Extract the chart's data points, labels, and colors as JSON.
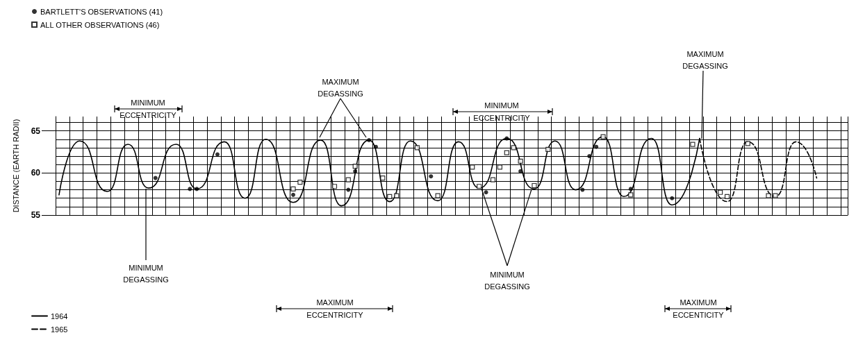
{
  "chart_data": {
    "type": "line",
    "ylabel": "DISTANCE (EARTH RADII)",
    "categories": [
      null,
      null,
      null,
      null,
      null,
      null,
      null,
      null,
      null,
      null,
      null,
      null,
      null,
      null,
      null,
      null,
      null,
      null,
      null,
      null,
      null,
      null,
      null,
      null,
      null,
      null,
      null,
      null,
      null,
      null,
      null,
      null,
      null,
      null,
      null,
      null,
      null,
      null,
      null,
      null,
      null,
      null,
      null,
      null,
      null,
      null,
      null,
      null,
      null,
      null,
      null,
      null,
      null,
      null,
      null,
      null,
      null,
      null,
      null,
      null,
      null,
      null,
      null,
      null,
      null,
      null,
      null,
      null,
      null,
      null,
      null,
      null,
      null,
      null,
      null,
      null,
      null,
      null,
      null,
      null,
      null,
      null,
      null,
      null,
      null,
      null,
      null,
      null,
      null,
      null,
      null,
      null,
      null,
      null,
      null,
      null,
      null,
      null,
      null,
      null,
      null,
      null,
      null,
      null,
      null,
      null,
      null,
      null,
      null,
      null,
      null,
      null,
      null,
      null,
      null
    ],
    "series": [
      {
        "name": "BARTLETT'S OBSERVATIONS (41)",
        "type": "scatter",
        "marker": "circle",
        "color": "#000000",
        "values": [
          null,
          null,
          null,
          null,
          null,
          null,
          null,
          null,
          null,
          null,
          null,
          null,
          null,
          null,
          59.4,
          null,
          null,
          null,
          null,
          58.1,
          58.1,
          null,
          null,
          62.2,
          null,
          null,
          null,
          null,
          null,
          null,
          null,
          null,
          null,
          null,
          57.4,
          null,
          null,
          null,
          null,
          null,
          null,
          null,
          58.0,
          60.2,
          null,
          63.9,
          63.1,
          null,
          null,
          null,
          null,
          null,
          null,
          null,
          59.6,
          null,
          null,
          null,
          null,
          null,
          null,
          null,
          57.7,
          null,
          null,
          64.1,
          null,
          60.2,
          null,
          null,
          null,
          null,
          null,
          null,
          null,
          null,
          58.0,
          62.0,
          63.1,
          null,
          null,
          null,
          null,
          58.1,
          null,
          null,
          null,
          null,
          null,
          57.0,
          null,
          null,
          null,
          null,
          null,
          null,
          null,
          null,
          null,
          null,
          null,
          null,
          null,
          null,
          null,
          null,
          null,
          null,
          null,
          null,
          null,
          null,
          null,
          null,
          null
        ]
      },
      {
        "name": "ALL OTHER OBSERVATIONS (46)",
        "type": "scatter",
        "marker": "square",
        "color": "#000000",
        "values": [
          null,
          null,
          null,
          null,
          null,
          null,
          null,
          null,
          null,
          null,
          null,
          null,
          null,
          null,
          null,
          null,
          null,
          null,
          null,
          null,
          null,
          null,
          null,
          null,
          null,
          null,
          null,
          null,
          null,
          null,
          null,
          null,
          null,
          null,
          58.1,
          58.9,
          null,
          null,
          null,
          null,
          58.4,
          null,
          59.2,
          60.8,
          null,
          null,
          null,
          59.4,
          57.2,
          57.3,
          null,
          null,
          63.0,
          null,
          null,
          57.3,
          null,
          null,
          null,
          null,
          60.7,
          58.4,
          null,
          59.2,
          60.7,
          62.4,
          63.0,
          61.4,
          null,
          58.5,
          null,
          62.8,
          null,
          null,
          null,
          null,
          null,
          null,
          null,
          64.3,
          null,
          null,
          null,
          57.4,
          null,
          null,
          null,
          null,
          null,
          null,
          null,
          null,
          63.4,
          null,
          null,
          null,
          57.7,
          57.2,
          null,
          null,
          63.5,
          null,
          null,
          57.3,
          57.3,
          null,
          null,
          null,
          null,
          null,
          null,
          null,
          null,
          null,
          null
        ]
      },
      {
        "name": "1964",
        "line_style": "solid",
        "color": "#000000",
        "values": [
          57.4,
          null,
          null,
          63.8,
          null,
          null,
          null,
          57.8,
          null,
          null,
          63.4,
          null,
          null,
          58.2,
          null,
          null,
          null,
          63.4,
          null,
          null,
          58.1,
          null,
          null,
          null,
          63.7,
          null,
          null,
          57.0,
          null,
          null,
          64.0,
          null,
          null,
          null,
          56.5,
          null,
          null,
          null,
          63.9,
          null,
          null,
          56.1,
          null,
          null,
          null,
          63.9,
          null,
          null,
          56.6,
          null,
          null,
          63.8,
          null,
          null,
          null,
          56.7,
          null,
          null,
          63.7,
          null,
          null,
          58.2,
          null,
          null,
          null,
          64.1,
          null,
          null,
          null,
          58.1,
          null,
          null,
          63.8,
          null,
          null,
          58.0,
          null,
          null,
          null,
          64.3,
          null,
          null,
          57.2,
          null,
          null,
          null,
          64.1,
          null,
          null,
          56.2,
          null,
          null,
          null,
          64.1,
          null,
          null,
          null,
          null,
          null,
          null,
          null,
          null,
          null,
          null,
          null,
          null,
          null,
          null,
          null,
          null,
          null,
          null,
          null,
          null,
          null
        ]
      },
      {
        "name": "1965",
        "line_style": "dashed",
        "color": "#000000",
        "values": [
          null,
          null,
          null,
          null,
          null,
          null,
          null,
          null,
          null,
          null,
          null,
          null,
          null,
          null,
          null,
          null,
          null,
          null,
          null,
          null,
          null,
          null,
          null,
          null,
          null,
          null,
          null,
          null,
          null,
          null,
          null,
          null,
          null,
          null,
          null,
          null,
          null,
          null,
          null,
          null,
          null,
          null,
          null,
          null,
          null,
          null,
          null,
          null,
          null,
          null,
          null,
          null,
          null,
          null,
          null,
          null,
          null,
          null,
          null,
          null,
          null,
          null,
          null,
          null,
          null,
          null,
          null,
          null,
          null,
          null,
          null,
          null,
          null,
          null,
          null,
          null,
          null,
          null,
          null,
          null,
          null,
          null,
          null,
          null,
          null,
          null,
          null,
          null,
          null,
          null,
          null,
          null,
          null,
          64.1,
          null,
          null,
          null,
          56.6,
          null,
          null,
          63.7,
          null,
          null,
          null,
          57.2,
          null,
          null,
          63.7,
          null,
          null,
          59.4,
          null,
          null,
          null,
          null
        ]
      }
    ],
    "ylim": [
      55,
      66.7
    ],
    "yticks": [
      55,
      60,
      65
    ],
    "grid": true,
    "legend": "left",
    "tick_labels": "y",
    "annotations": [
      "MINIMUM ECCENTRICITY",
      "MAXIMUM DEGASSING",
      "MINIMUM ECCENTRICITY",
      "MAXIMUM DEGASSING",
      "MINIMUM DEGASSING",
      "MINIMUM DEGASSING",
      "MAXIMUM ECCENTRICITY",
      "MAXIMUM ECCENTICITY"
    ]
  }
}
